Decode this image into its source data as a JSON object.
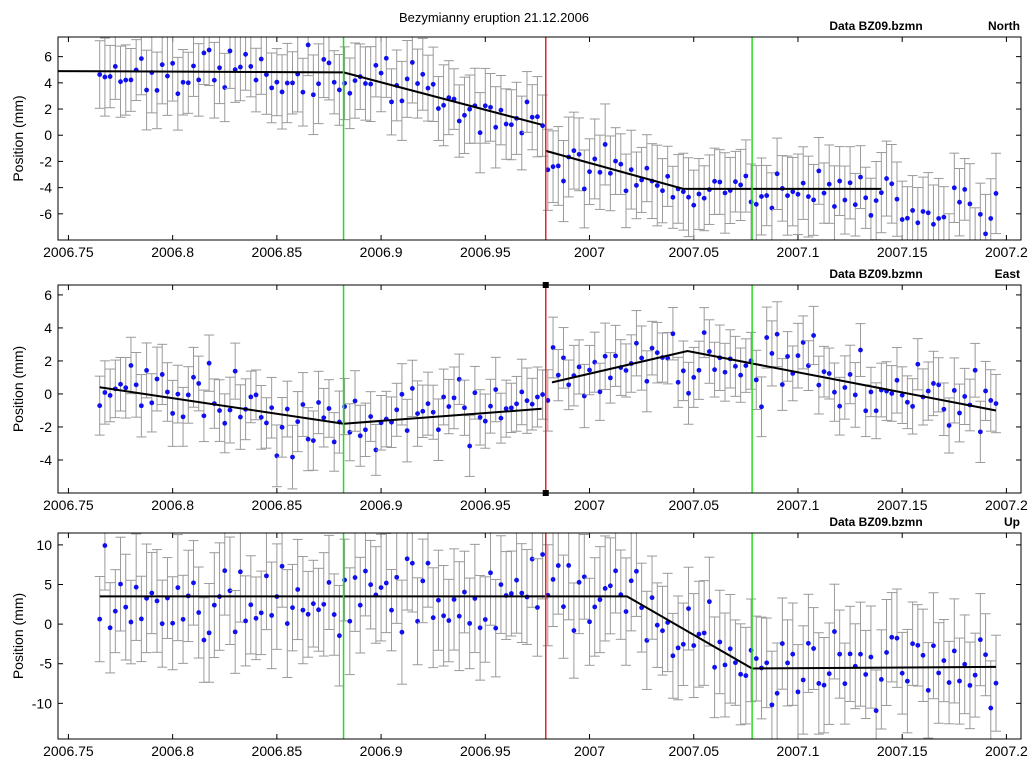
{
  "figure": {
    "title": "Bezymianny eruption  21.12.2006"
  },
  "chart_data": [
    {
      "type": "scatter",
      "title": "Data BZ09.bzmn",
      "component": "North",
      "ylabel": "Position (mm)",
      "xlim": [
        2006.745,
        2007.207
      ],
      "ylim": [
        -8,
        7.5
      ],
      "xticks": [
        2006.75,
        2006.8,
        2006.85,
        2006.9,
        2006.95,
        2007,
        2007.05,
        2007.1,
        2007.15,
        2007.2
      ],
      "xtick_labels": [
        "2006.75",
        "2006.8",
        "2006.85",
        "2006.9",
        "2006.95",
        "2007",
        "2007.05",
        "2007.1",
        "2007.15",
        "2007.2"
      ],
      "yticks": [
        -6,
        -4,
        -2,
        0,
        2,
        4,
        6
      ],
      "vlines": [
        {
          "x": 2006.882,
          "color": "#22dd22"
        },
        {
          "x": 2006.979,
          "color": "#ee2222"
        },
        {
          "x": 2007.078,
          "color": "#22dd22"
        }
      ],
      "fit": [
        [
          [
            2006.745,
            4.9
          ],
          [
            2006.882,
            4.8
          ],
          [
            2006.977,
            0.8
          ]
        ],
        [
          [
            2006.979,
            -1.2
          ],
          [
            2007.045,
            -4.1
          ],
          [
            2007.14,
            -4.1
          ]
        ]
      ],
      "point_series": {
        "x_start": 2006.765,
        "x_end": 2007.195,
        "n": 173,
        "sigma": 0.9,
        "err": 2.7,
        "seed": 11,
        "mode": "fit",
        "tail": {
          "x0": 2007.14,
          "level": -5.5,
          "sigma": 1.3
        }
      },
      "series": [
        {
          "color": "#1010ee"
        }
      ]
    },
    {
      "type": "scatter",
      "title": "Data BZ09.bzmn",
      "component": "East",
      "ylabel": "Position (mm)",
      "xlim": [
        2006.745,
        2007.207
      ],
      "ylim": [
        -6,
        6.6
      ],
      "xticks": [
        2006.75,
        2006.8,
        2006.85,
        2006.9,
        2006.95,
        2007,
        2007.05,
        2007.1,
        2007.15,
        2007.2
      ],
      "xtick_labels": [
        "2006.75",
        "2006.8",
        "2006.85",
        "2006.9",
        "2006.95",
        "2007",
        "2007.05",
        "2007.1",
        "2007.15",
        "2007.2"
      ],
      "yticks": [
        -4,
        -2,
        0,
        2,
        4,
        6
      ],
      "vlines": [
        {
          "x": 2006.882,
          "color": "#22dd22"
        },
        {
          "x": 2006.979,
          "color": "#ee2222"
        },
        {
          "x": 2007.078,
          "color": "#22dd22"
        }
      ],
      "fit": [
        [
          [
            2006.765,
            0.4
          ],
          [
            2006.882,
            -1.8
          ],
          [
            2006.977,
            -0.9
          ]
        ],
        [
          [
            2006.982,
            0.7
          ],
          [
            2007.047,
            2.6
          ],
          [
            2007.195,
            -1.0
          ]
        ]
      ],
      "point_series": {
        "x_start": 2006.765,
        "x_end": 2007.195,
        "n": 173,
        "sigma": 1.0,
        "err": 1.75,
        "seed": 23,
        "mode": "fit"
      },
      "series": [
        {
          "color": "#1010ee"
        }
      ]
    },
    {
      "type": "scatter",
      "title": "Data BZ09.bzmn",
      "component": "Up",
      "ylabel": "Position (mm)",
      "xlim": [
        2006.745,
        2007.207
      ],
      "ylim": [
        -14.5,
        11.5
      ],
      "xticks": [
        2006.75,
        2006.8,
        2006.85,
        2006.9,
        2006.95,
        2007,
        2007.05,
        2007.1,
        2007.15,
        2007.2
      ],
      "xtick_labels": [
        "2006.75",
        "2006.8",
        "2006.85",
        "2006.9",
        "2006.95",
        "2007",
        "2007.05",
        "2007.1",
        "2007.15",
        "2007.2"
      ],
      "yticks": [
        -10,
        -5,
        0,
        5,
        10
      ],
      "vlines": [
        {
          "x": 2006.882,
          "color": "#22dd22"
        },
        {
          "x": 2006.979,
          "color": "#ee2222"
        },
        {
          "x": 2007.078,
          "color": "#22dd22"
        }
      ],
      "fit": [
        [
          [
            2006.765,
            3.5
          ],
          [
            2007.018,
            3.5
          ],
          [
            2007.078,
            -5.6
          ],
          [
            2007.195,
            -5.4
          ]
        ]
      ],
      "point_series": {
        "x_start": 2006.765,
        "x_end": 2007.195,
        "n": 173,
        "sigma": 2.6,
        "err": 6.0,
        "seed": 37,
        "mode": "fit"
      },
      "series": [
        {
          "color": "#1010ee"
        }
      ]
    }
  ]
}
